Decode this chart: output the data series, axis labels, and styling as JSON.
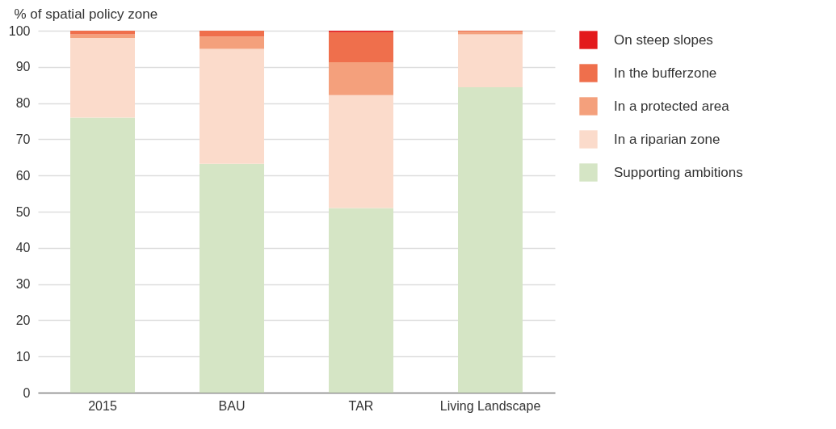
{
  "chart_data": {
    "type": "bar",
    "stacked": true,
    "ylabel": "% of spatial policy zone",
    "categories": [
      "2015",
      "BAU",
      "TAR",
      "Living Landscape"
    ],
    "series": [
      {
        "name": "Supporting ambitions",
        "color": "#d5e5c5",
        "values": [
          76,
          63.2,
          51,
          84.4
        ]
      },
      {
        "name": "In a riparian zone",
        "color": "#fbdbcb",
        "values": [
          22,
          31.8,
          31.2,
          14.6
        ]
      },
      {
        "name": "In a protected area",
        "color": "#f4a07c",
        "values": [
          1,
          3.4,
          9.1,
          0.7
        ]
      },
      {
        "name": "In the bufferzone",
        "color": "#ef6f4c",
        "values": [
          1,
          1.6,
          8.3,
          0.3
        ]
      },
      {
        "name": "On steep slopes",
        "color": "#e31a1c",
        "values": [
          0,
          0,
          0.4,
          0
        ]
      }
    ],
    "ylim": [
      0,
      100
    ],
    "yticks": [
      0,
      10,
      20,
      30,
      40,
      50,
      60,
      70,
      80,
      90,
      100
    ],
    "grid": "y",
    "legend": "right"
  }
}
